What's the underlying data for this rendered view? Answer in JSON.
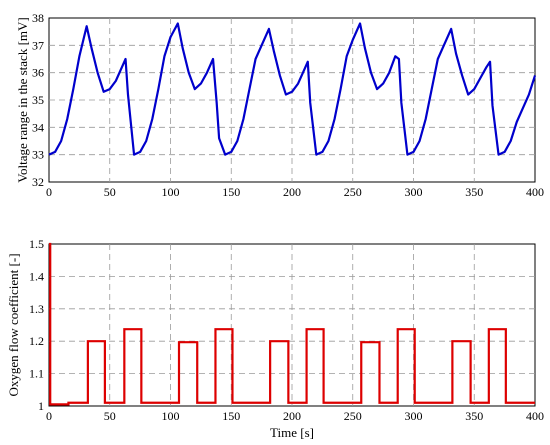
{
  "chart_data": [
    {
      "type": "line",
      "ylabel": "Voltage range in the stack [mV]",
      "xlabel": "",
      "xlim": [
        0,
        400
      ],
      "ylim": [
        32,
        38
      ],
      "xticks": [
        "0",
        "50",
        "100",
        "150",
        "200",
        "250",
        "300",
        "350",
        "400"
      ],
      "yticks": [
        "32",
        "33",
        "34",
        "35",
        "36",
        "37",
        "38"
      ],
      "grid": true,
      "color": "#0000cc",
      "series": [
        {
          "x": [
            0,
            5,
            10,
            15,
            20,
            25,
            31,
            35,
            40,
            45,
            50,
            55,
            60,
            63,
            65,
            70,
            75,
            80,
            85,
            90,
            95,
            100,
            106,
            110,
            115,
            120,
            125,
            130,
            135,
            138,
            140,
            145,
            150,
            155,
            160,
            165,
            170,
            175,
            181,
            185,
            190,
            195,
            200,
            205,
            210,
            213,
            215,
            220,
            225,
            230,
            235,
            240,
            245,
            250,
            256,
            260,
            265,
            270,
            275,
            280,
            285,
            288,
            290,
            295,
            300,
            305,
            310,
            315,
            320,
            325,
            331,
            335,
            340,
            345,
            350,
            355,
            360,
            363,
            365,
            370,
            375,
            380,
            385,
            390,
            395,
            400
          ],
          "y": [
            33.0,
            33.1,
            33.5,
            34.3,
            35.4,
            36.6,
            37.7,
            36.9,
            36.0,
            35.3,
            35.4,
            35.7,
            36.2,
            36.5,
            35.2,
            33.0,
            33.1,
            33.5,
            34.3,
            35.4,
            36.6,
            37.3,
            37.8,
            36.9,
            36.0,
            35.4,
            35.6,
            36.0,
            36.5,
            34.9,
            33.6,
            33.0,
            33.1,
            33.5,
            34.3,
            35.4,
            36.5,
            37.0,
            37.6,
            36.8,
            35.9,
            35.2,
            35.3,
            35.6,
            36.1,
            36.4,
            34.9,
            33.0,
            33.1,
            33.5,
            34.3,
            35.4,
            36.6,
            37.2,
            37.8,
            36.9,
            36.0,
            35.4,
            35.6,
            36.0,
            36.6,
            36.5,
            34.9,
            33.0,
            33.1,
            33.5,
            34.3,
            35.4,
            36.5,
            37.0,
            37.6,
            36.7,
            35.9,
            35.2,
            35.4,
            35.8,
            36.2,
            36.4,
            34.8,
            33.0,
            33.1,
            33.5,
            34.2,
            34.7,
            35.2,
            35.9
          ]
        }
      ]
    },
    {
      "type": "line",
      "ylabel": "Oxygen flow coefficient [-]",
      "xlabel": "Time [s]",
      "xlim": [
        0,
        400
      ],
      "ylim": [
        1,
        1.5
      ],
      "xticks": [
        "0",
        "50",
        "100",
        "150",
        "200",
        "250",
        "300",
        "350",
        "400"
      ],
      "yticks": [
        "1",
        "1.1",
        "1.2",
        "1.3",
        "1.4",
        "1.5"
      ],
      "grid": true,
      "color": "#dd0000",
      "series": [
        {
          "x": [
            0,
            1,
            1,
            16,
            16,
            32,
            32,
            46,
            46,
            62,
            62,
            76,
            76,
            107,
            107,
            122,
            122,
            137,
            137,
            151,
            151,
            182,
            182,
            197,
            197,
            212,
            212,
            226,
            226,
            257,
            257,
            272,
            272,
            287,
            287,
            301,
            301,
            332,
            332,
            347,
            347,
            362,
            362,
            376,
            376,
            400
          ],
          "y": [
            1.5,
            1.5,
            1.005,
            1.005,
            1.01,
            1.01,
            1.2,
            1.2,
            1.01,
            1.01,
            1.237,
            1.237,
            1.01,
            1.01,
            1.197,
            1.197,
            1.01,
            1.01,
            1.237,
            1.237,
            1.01,
            1.01,
            1.2,
            1.2,
            1.01,
            1.01,
            1.237,
            1.237,
            1.01,
            1.01,
            1.197,
            1.197,
            1.01,
            1.01,
            1.237,
            1.237,
            1.01,
            1.01,
            1.2,
            1.2,
            1.01,
            1.01,
            1.237,
            1.237,
            1.01,
            1.01
          ]
        }
      ]
    }
  ]
}
